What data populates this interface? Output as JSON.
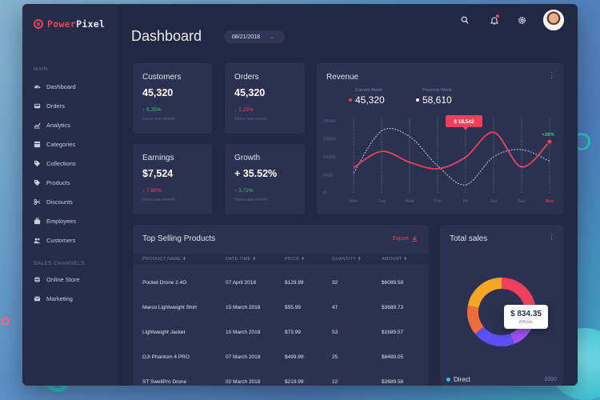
{
  "brand": {
    "part1": "Power",
    "part2": "Pixel"
  },
  "header": {
    "title": "Dashboard",
    "date": "08/21/2018"
  },
  "sidebar": {
    "main_label": "MAIN",
    "main_items": [
      {
        "label": "Dashboard",
        "icon": "dashboard-icon"
      },
      {
        "label": "Orders",
        "icon": "inbox-icon"
      },
      {
        "label": "Analytics",
        "icon": "analytics-icon"
      },
      {
        "label": "Categories",
        "icon": "categories-icon"
      },
      {
        "label": "Collections",
        "icon": "tag-icon"
      },
      {
        "label": "Products",
        "icon": "tag-icon"
      },
      {
        "label": "Discounts",
        "icon": "scissors-icon"
      },
      {
        "label": "Employees",
        "icon": "employees-icon"
      },
      {
        "label": "Customers",
        "icon": "customers-icon"
      }
    ],
    "sales_label": "SALES CHANNELS",
    "sales_items": [
      {
        "label": "Online Store",
        "icon": "globe-icon"
      },
      {
        "label": "Marketing",
        "icon": "mail-icon"
      }
    ]
  },
  "stats": [
    {
      "title": "Customers",
      "value": "45,320",
      "delta": "5.25%",
      "dir": "up",
      "sub": "Since last month"
    },
    {
      "title": "Orders",
      "value": "45,320",
      "delta": "1.23%",
      "dir": "down",
      "sub": "Since last month"
    },
    {
      "title": "Earnings",
      "value": "$7,524",
      "delta": "7.85%",
      "dir": "down",
      "sub": "Since last month"
    },
    {
      "title": "Growth",
      "value": "+ 35.52%",
      "delta": "3.72%",
      "dir": "up",
      "sub": "Since last month"
    }
  ],
  "revenue": {
    "title": "Revenue",
    "current_label": "Current Week",
    "current_value": "45,320",
    "previous_label": "Previous Week",
    "previous_value": "58,610",
    "tooltip": "$ 18,542",
    "end_badge": "+26%",
    "colors": {
      "current": "#f0405b",
      "previous": "#c7cbe0"
    }
  },
  "chart_data": {
    "type": "line",
    "categories": [
      "Mon",
      "Tue",
      "Wed",
      "Thu",
      "Fri",
      "Sat",
      "Sun",
      "Mon"
    ],
    "yticks": [
      "20000",
      "15000",
      "10000",
      "5000",
      "0"
    ],
    "ylim": [
      0,
      20000
    ],
    "series": [
      {
        "values": [
          7000,
          11500,
          8500,
          6700,
          9900,
          16800,
          7200,
          14200
        ]
      },
      {
        "values": [
          5500,
          17200,
          15600,
          7500,
          2200,
          10000,
          12000,
          8800
        ]
      }
    ],
    "highlight": {
      "category": "Fri",
      "label": "$ 18,542"
    }
  },
  "table": {
    "title": "Top Selling Products",
    "export_label": "Export",
    "columns": [
      "PRODUCT NAME",
      "DATE TIME",
      "PRICE",
      "QUANTITY",
      "AMOUNT"
    ],
    "rows": [
      [
        "Pocket Drone 2.4G",
        "07 April 2018",
        "$129.99",
        "32",
        "$6089.58"
      ],
      [
        "Marco Lightweight Shirt",
        "15 March 2018",
        "$55.99",
        "47",
        "$3689.73"
      ],
      [
        "Lightweight Jacket",
        "10 March 2018",
        "$73.99",
        "53",
        "$1689.57"
      ],
      [
        "DJI Phantom 4 PRO",
        "07 March 2018",
        "$499.99",
        "25",
        "$8489.05"
      ],
      [
        "ST SwellPro Drone",
        "02 March 2018",
        "$219.99",
        "12",
        "$2689.58"
      ]
    ]
  },
  "total_sales": {
    "title": "Total sales",
    "tooltip_value": "$ 834.35",
    "tooltip_label": "Affiliate",
    "legend_label": "Direct",
    "legend_value": "3300",
    "segments": [
      {
        "color": "#f0405b",
        "value": 26
      },
      {
        "color": "#a353f0",
        "value": 18
      },
      {
        "color": "#5a4ff5",
        "value": 20
      },
      {
        "color": "#f06b3c",
        "value": 14
      },
      {
        "color": "#f5a623",
        "value": 22
      }
    ]
  }
}
